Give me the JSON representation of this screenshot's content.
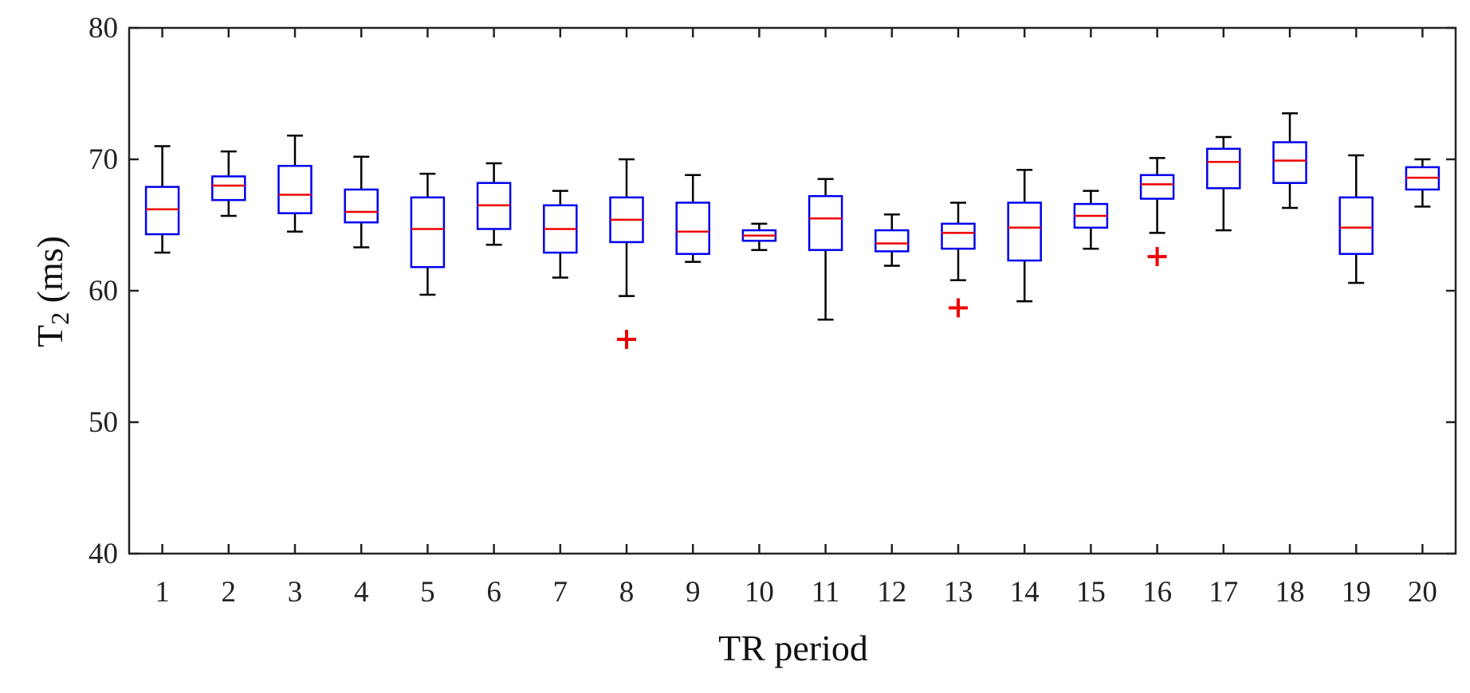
{
  "chart_data": {
    "type": "boxplot",
    "xlabel": "TR period",
    "ylabel_main": "T",
    "ylabel_sub": "2",
    "ylabel_unit": " (ms)",
    "ylim": [
      40,
      80
    ],
    "yticks": [
      "40",
      "50",
      "60",
      "70",
      "80"
    ],
    "ytick_values": [
      40,
      50,
      60,
      70,
      80
    ],
    "grid": false,
    "colors": {
      "box": "#0000ee",
      "median": "#ee0000",
      "whisker": "#000000",
      "outlier": "#ee0000",
      "axis": "#222222"
    },
    "categories": [
      "1",
      "2",
      "3",
      "4",
      "5",
      "6",
      "7",
      "8",
      "9",
      "10",
      "11",
      "12",
      "13",
      "14",
      "15",
      "16",
      "17",
      "18",
      "19",
      "20"
    ],
    "boxes": [
      {
        "whisker_low": 62.9,
        "q1": 64.3,
        "median": 66.2,
        "q3": 67.9,
        "whisker_high": 71.0,
        "outliers": []
      },
      {
        "whisker_low": 65.7,
        "q1": 66.9,
        "median": 68.0,
        "q3": 68.7,
        "whisker_high": 70.6,
        "outliers": []
      },
      {
        "whisker_low": 64.5,
        "q1": 65.9,
        "median": 67.3,
        "q3": 69.5,
        "whisker_high": 71.8,
        "outliers": []
      },
      {
        "whisker_low": 63.3,
        "q1": 65.2,
        "median": 66.0,
        "q3": 67.7,
        "whisker_high": 70.2,
        "outliers": []
      },
      {
        "whisker_low": 59.7,
        "q1": 61.8,
        "median": 64.7,
        "q3": 67.1,
        "whisker_high": 68.9,
        "outliers": []
      },
      {
        "whisker_low": 63.5,
        "q1": 64.7,
        "median": 66.5,
        "q3": 68.2,
        "whisker_high": 69.7,
        "outliers": []
      },
      {
        "whisker_low": 61.0,
        "q1": 62.9,
        "median": 64.7,
        "q3": 66.5,
        "whisker_high": 67.6,
        "outliers": []
      },
      {
        "whisker_low": 59.6,
        "q1": 63.7,
        "median": 65.4,
        "q3": 67.1,
        "whisker_high": 70.0,
        "outliers": [
          56.3
        ]
      },
      {
        "whisker_low": 62.2,
        "q1": 62.8,
        "median": 64.5,
        "q3": 66.7,
        "whisker_high": 68.8,
        "outliers": []
      },
      {
        "whisker_low": 63.1,
        "q1": 63.8,
        "median": 64.2,
        "q3": 64.6,
        "whisker_high": 65.1,
        "outliers": []
      },
      {
        "whisker_low": 57.8,
        "q1": 63.1,
        "median": 65.5,
        "q3": 67.2,
        "whisker_high": 68.5,
        "outliers": []
      },
      {
        "whisker_low": 61.9,
        "q1": 63.0,
        "median": 63.6,
        "q3": 64.6,
        "whisker_high": 65.8,
        "outliers": []
      },
      {
        "whisker_low": 60.8,
        "q1": 63.2,
        "median": 64.4,
        "q3": 65.1,
        "whisker_high": 66.7,
        "outliers": [
          58.7
        ]
      },
      {
        "whisker_low": 59.2,
        "q1": 62.3,
        "median": 64.8,
        "q3": 66.7,
        "whisker_high": 69.2,
        "outliers": []
      },
      {
        "whisker_low": 63.2,
        "q1": 64.8,
        "median": 65.7,
        "q3": 66.6,
        "whisker_high": 67.6,
        "outliers": []
      },
      {
        "whisker_low": 64.4,
        "q1": 67.0,
        "median": 68.1,
        "q3": 68.8,
        "whisker_high": 70.1,
        "outliers": [
          62.6
        ]
      },
      {
        "whisker_low": 64.6,
        "q1": 67.8,
        "median": 69.8,
        "q3": 70.8,
        "whisker_high": 71.7,
        "outliers": []
      },
      {
        "whisker_low": 66.3,
        "q1": 68.2,
        "median": 69.9,
        "q3": 71.3,
        "whisker_high": 73.5,
        "outliers": []
      },
      {
        "whisker_low": 60.6,
        "q1": 62.8,
        "median": 64.8,
        "q3": 67.1,
        "whisker_high": 70.3,
        "outliers": []
      },
      {
        "whisker_low": 66.4,
        "q1": 67.7,
        "median": 68.6,
        "q3": 69.4,
        "whisker_high": 70.0,
        "outliers": []
      }
    ]
  }
}
